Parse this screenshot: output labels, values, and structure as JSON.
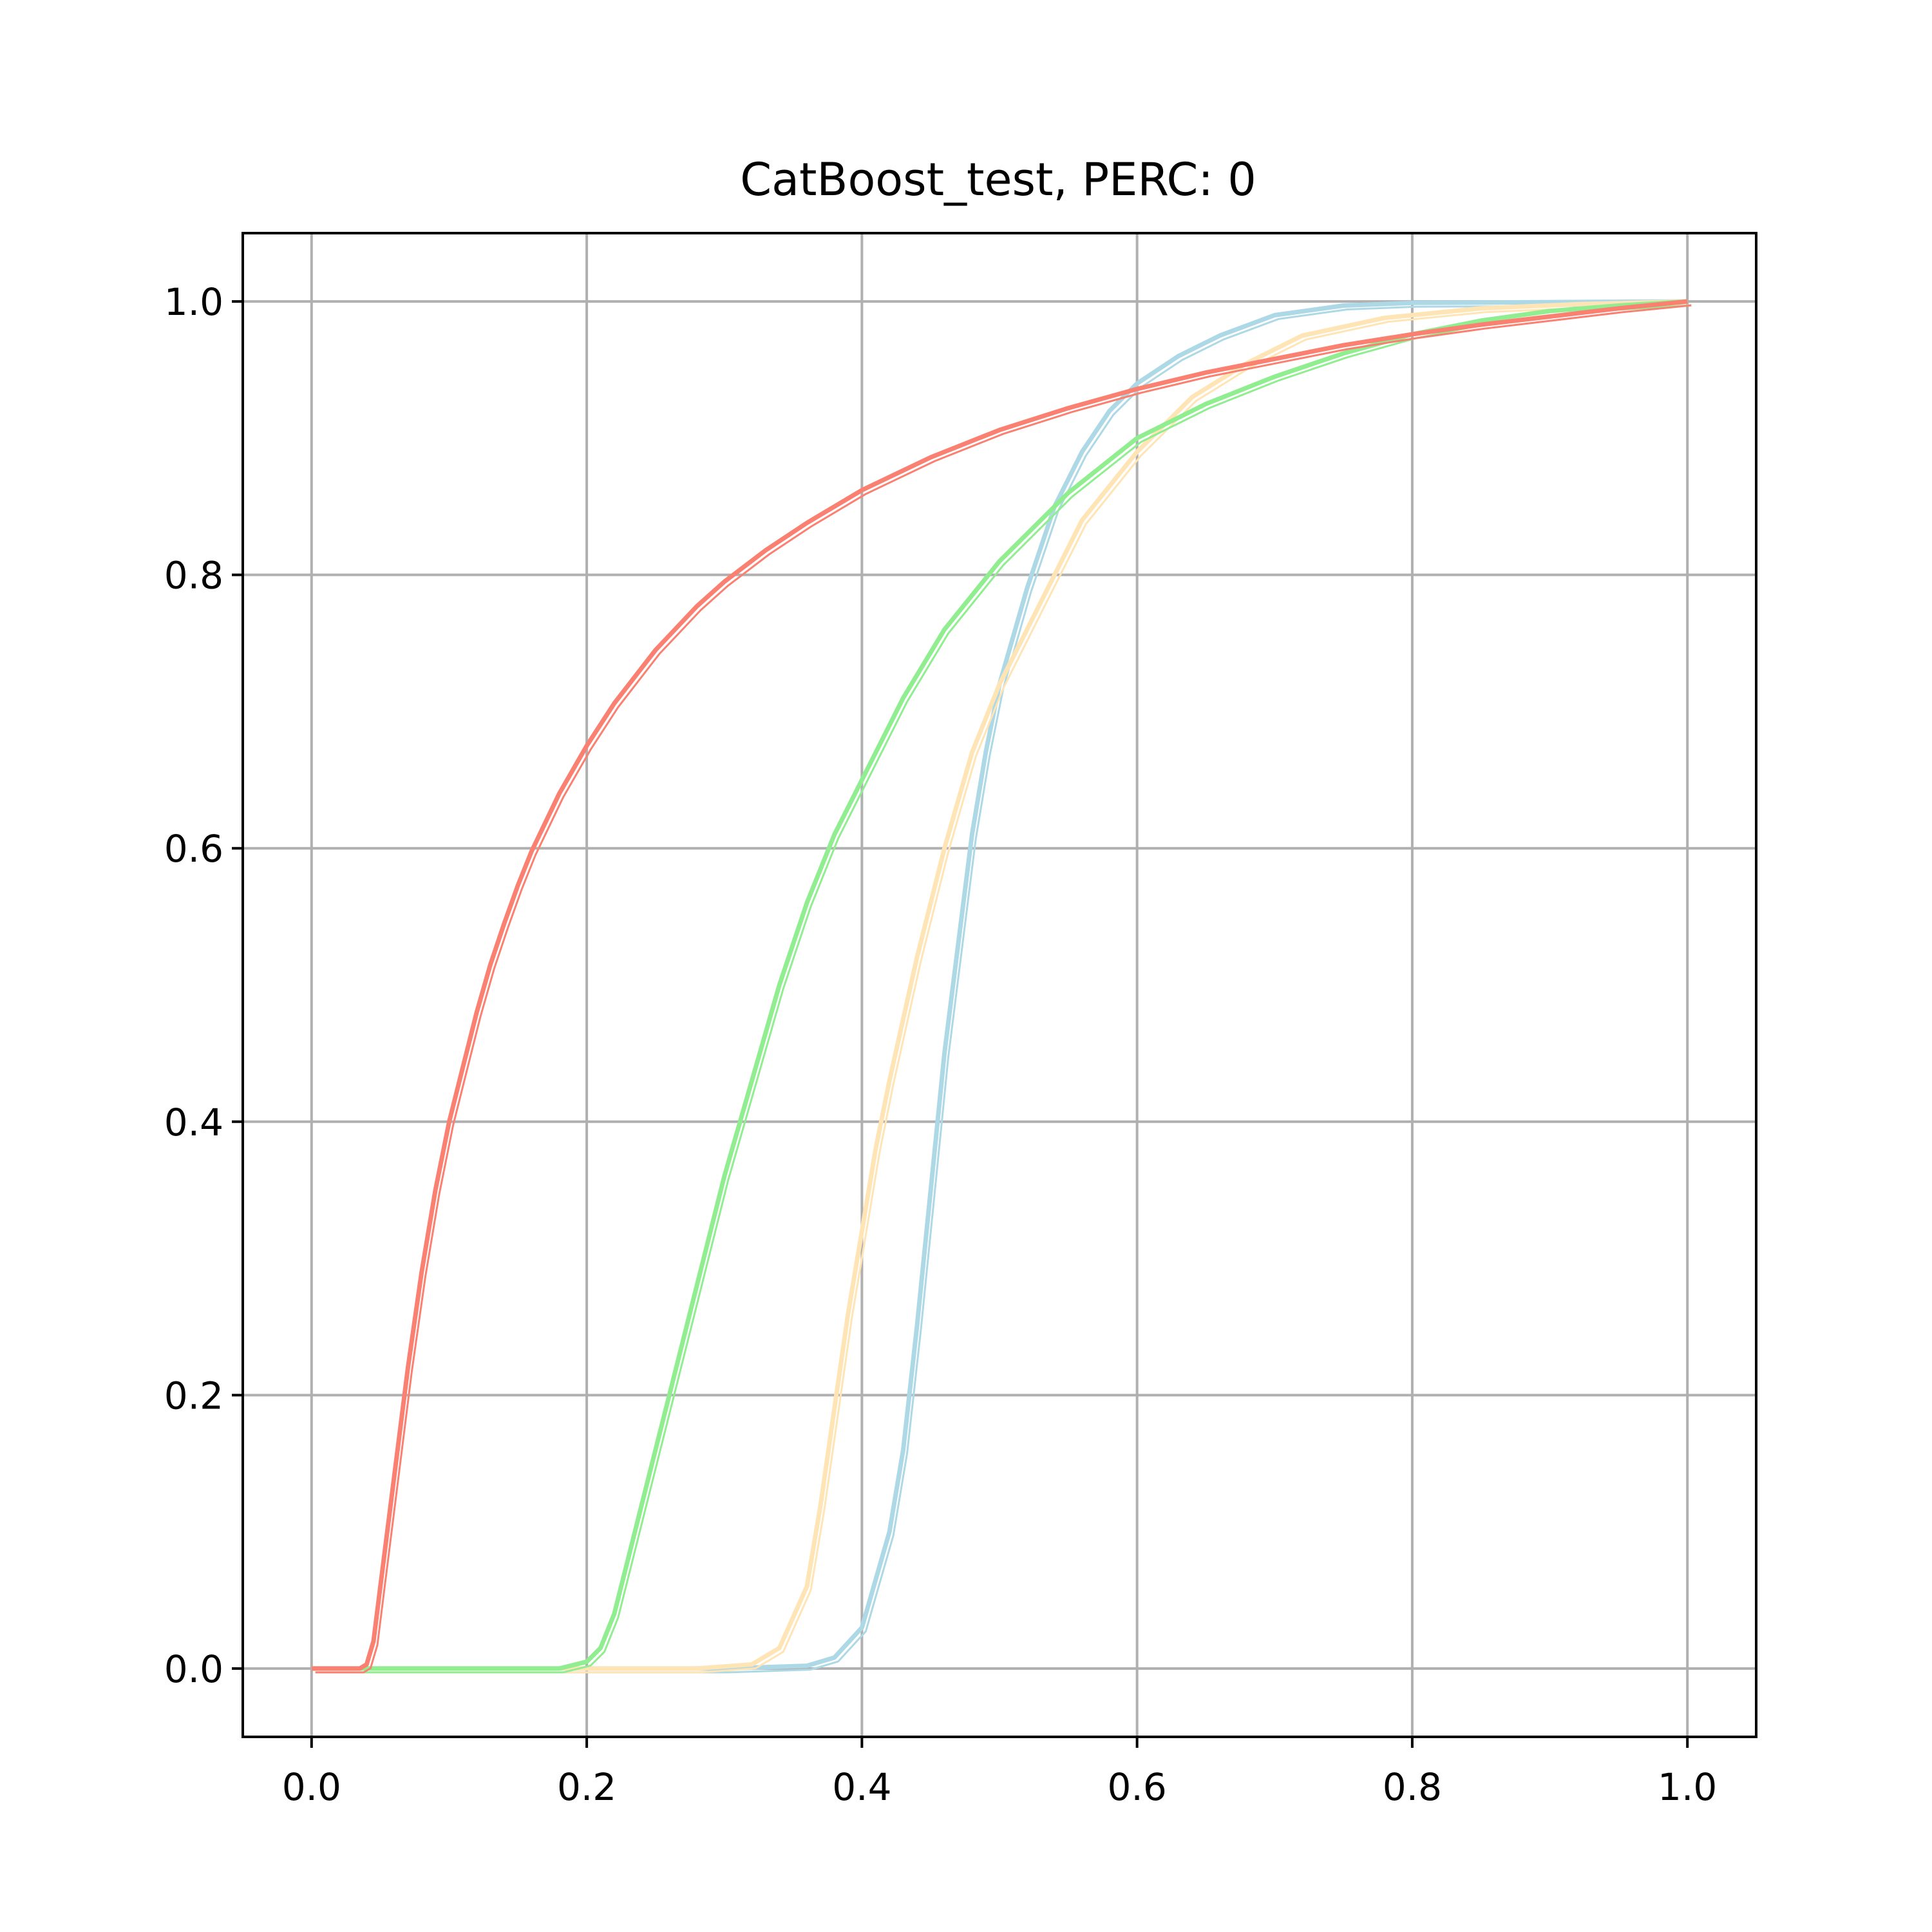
{
  "chart_data": {
    "type": "line",
    "title": "CatBoost_test, PERC: 0",
    "xlabel": "",
    "ylabel": "",
    "xlim": [
      -0.05,
      1.05
    ],
    "ylim": [
      -0.05,
      1.05
    ],
    "xticks": [
      0.0,
      0.2,
      0.4,
      0.6,
      0.8,
      1.0
    ],
    "yticks": [
      0.0,
      0.2,
      0.4,
      0.6,
      0.8,
      1.0
    ],
    "xtick_labels": [
      "0.0",
      "0.2",
      "0.4",
      "0.6",
      "0.8",
      "1.0"
    ],
    "ytick_labels": [
      "0.0",
      "0.2",
      "0.4",
      "0.6",
      "0.8",
      "1.0"
    ],
    "grid": true,
    "legend": "none",
    "series": [
      {
        "color": "#add8e6",
        "points": [
          [
            0.0,
            0.0
          ],
          [
            0.3,
            0.0
          ],
          [
            0.36,
            0.002
          ],
          [
            0.38,
            0.008
          ],
          [
            0.4,
            0.03
          ],
          [
            0.42,
            0.1
          ],
          [
            0.43,
            0.16
          ],
          [
            0.44,
            0.25
          ],
          [
            0.45,
            0.35
          ],
          [
            0.46,
            0.45
          ],
          [
            0.47,
            0.53
          ],
          [
            0.48,
            0.61
          ],
          [
            0.49,
            0.67
          ],
          [
            0.5,
            0.72
          ],
          [
            0.52,
            0.79
          ],
          [
            0.54,
            0.85
          ],
          [
            0.56,
            0.89
          ],
          [
            0.58,
            0.92
          ],
          [
            0.6,
            0.94
          ],
          [
            0.63,
            0.96
          ],
          [
            0.66,
            0.975
          ],
          [
            0.7,
            0.99
          ],
          [
            0.75,
            0.997
          ],
          [
            0.8,
            0.999
          ],
          [
            1.0,
            1.0
          ]
        ]
      },
      {
        "color": "#ffe4b5",
        "points": [
          [
            0.0,
            0.0
          ],
          [
            0.28,
            0.0
          ],
          [
            0.32,
            0.003
          ],
          [
            0.34,
            0.015
          ],
          [
            0.36,
            0.06
          ],
          [
            0.37,
            0.12
          ],
          [
            0.38,
            0.19
          ],
          [
            0.39,
            0.26
          ],
          [
            0.4,
            0.32
          ],
          [
            0.41,
            0.38
          ],
          [
            0.42,
            0.43
          ],
          [
            0.44,
            0.52
          ],
          [
            0.46,
            0.6
          ],
          [
            0.48,
            0.67
          ],
          [
            0.5,
            0.72
          ],
          [
            0.53,
            0.78
          ],
          [
            0.56,
            0.84
          ],
          [
            0.6,
            0.89
          ],
          [
            0.64,
            0.93
          ],
          [
            0.68,
            0.955
          ],
          [
            0.72,
            0.975
          ],
          [
            0.78,
            0.988
          ],
          [
            0.85,
            0.995
          ],
          [
            0.92,
            0.998
          ],
          [
            1.0,
            1.0
          ]
        ]
      },
      {
        "color": "#90ee90",
        "points": [
          [
            0.0,
            0.0
          ],
          [
            0.18,
            0.0
          ],
          [
            0.2,
            0.005
          ],
          [
            0.21,
            0.015
          ],
          [
            0.22,
            0.04
          ],
          [
            0.23,
            0.08
          ],
          [
            0.24,
            0.12
          ],
          [
            0.26,
            0.2
          ],
          [
            0.28,
            0.28
          ],
          [
            0.3,
            0.36
          ],
          [
            0.32,
            0.43
          ],
          [
            0.34,
            0.5
          ],
          [
            0.36,
            0.56
          ],
          [
            0.38,
            0.61
          ],
          [
            0.4,
            0.65
          ],
          [
            0.43,
            0.71
          ],
          [
            0.46,
            0.76
          ],
          [
            0.5,
            0.81
          ],
          [
            0.55,
            0.86
          ],
          [
            0.6,
            0.9
          ],
          [
            0.65,
            0.925
          ],
          [
            0.7,
            0.945
          ],
          [
            0.75,
            0.962
          ],
          [
            0.8,
            0.976
          ],
          [
            0.85,
            0.986
          ],
          [
            0.9,
            0.993
          ],
          [
            0.95,
            0.997
          ],
          [
            1.0,
            1.0
          ]
        ]
      },
      {
        "color": "#fa8072",
        "points": [
          [
            0.0,
            0.0
          ],
          [
            0.035,
            0.0
          ],
          [
            0.04,
            0.003
          ],
          [
            0.045,
            0.02
          ],
          [
            0.05,
            0.06
          ],
          [
            0.06,
            0.14
          ],
          [
            0.07,
            0.22
          ],
          [
            0.08,
            0.29
          ],
          [
            0.09,
            0.35
          ],
          [
            0.1,
            0.4
          ],
          [
            0.11,
            0.44
          ],
          [
            0.12,
            0.48
          ],
          [
            0.13,
            0.515
          ],
          [
            0.14,
            0.545
          ],
          [
            0.15,
            0.573
          ],
          [
            0.16,
            0.598
          ],
          [
            0.18,
            0.64
          ],
          [
            0.2,
            0.675
          ],
          [
            0.22,
            0.706
          ],
          [
            0.25,
            0.745
          ],
          [
            0.28,
            0.777
          ],
          [
            0.3,
            0.795
          ],
          [
            0.33,
            0.818
          ],
          [
            0.36,
            0.838
          ],
          [
            0.4,
            0.862
          ],
          [
            0.45,
            0.886
          ],
          [
            0.5,
            0.906
          ],
          [
            0.55,
            0.922
          ],
          [
            0.6,
            0.936
          ],
          [
            0.65,
            0.948
          ],
          [
            0.7,
            0.958
          ],
          [
            0.75,
            0.968
          ],
          [
            0.8,
            0.976
          ],
          [
            0.85,
            0.983
          ],
          [
            0.9,
            0.989
          ],
          [
            0.95,
            0.995
          ],
          [
            1.0,
            1.0
          ]
        ]
      }
    ]
  }
}
